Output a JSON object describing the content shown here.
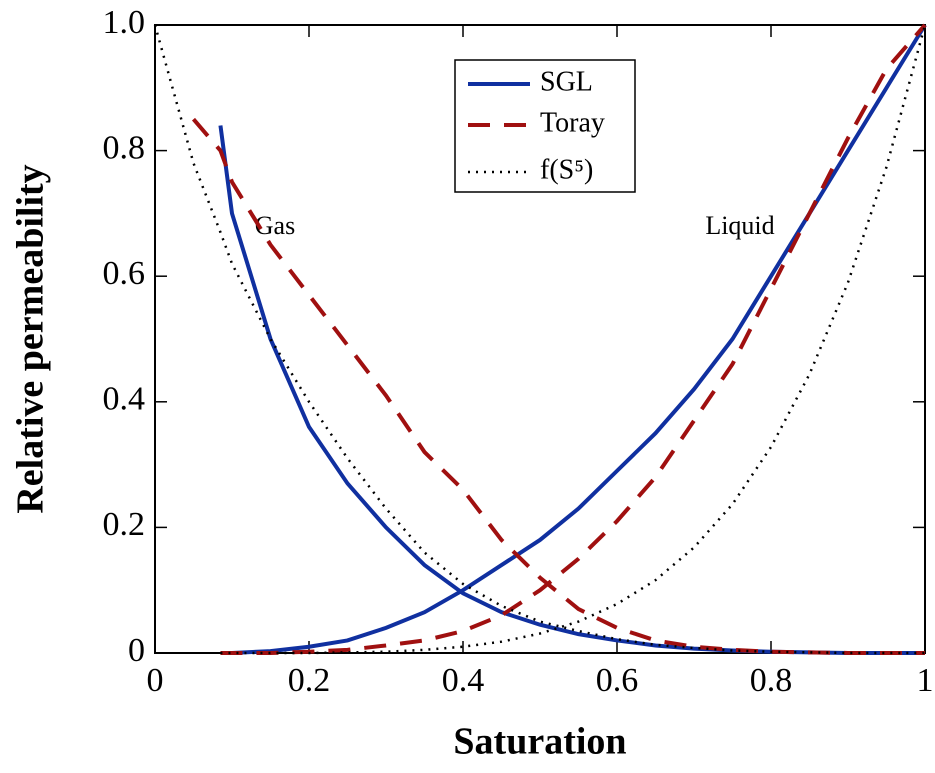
{
  "chart_data": {
    "type": "line",
    "xlabel": "Saturation",
    "ylabel": "Relative permeability",
    "annotations": [
      "Gas",
      "Liquid"
    ],
    "x": [
      0,
      0.05,
      0.085,
      0.1,
      0.15,
      0.2,
      0.25,
      0.3,
      0.35,
      0.4,
      0.45,
      0.5,
      0.55,
      0.6,
      0.65,
      0.7,
      0.75,
      0.8,
      0.85,
      0.9,
      0.95,
      1
    ],
    "xlim": [
      0,
      1
    ],
    "ylim": [
      0,
      1
    ],
    "xticks": [
      0,
      0.2,
      0.4,
      0.6,
      0.8,
      1
    ],
    "yticks": [
      0,
      0.2,
      0.4,
      0.6,
      0.8,
      {
        "value": 1,
        "label": "1.0"
      }
    ],
    "legend": "upper center",
    "series": [
      {
        "name": "SGL",
        "color": "#1030a0",
        "style": "solid",
        "gas": [
          null,
          null,
          0.84,
          0.7,
          0.5,
          0.36,
          0.27,
          0.2,
          0.14,
          0.095,
          0.065,
          0.045,
          0.03,
          0.02,
          0.012,
          0.007,
          0.004,
          0.002,
          0.001,
          0,
          0,
          0
        ],
        "liquid": [
          null,
          null,
          null,
          0,
          0.003,
          0.01,
          0.02,
          0.04,
          0.065,
          0.1,
          0.14,
          0.18,
          0.23,
          0.29,
          0.35,
          0.42,
          0.5,
          0.6,
          0.7,
          0.8,
          0.9,
          1
        ]
      },
      {
        "name": "Toray",
        "color": "#a01010",
        "style": "dashed",
        "gas": [
          null,
          0.85,
          0.8,
          0.75,
          0.65,
          0.57,
          0.49,
          0.41,
          0.32,
          0.26,
          0.18,
          0.12,
          0.07,
          0.04,
          0.02,
          0.01,
          0.005,
          0.002,
          0.001,
          0,
          0,
          0
        ],
        "liquid": [
          null,
          null,
          0,
          0,
          0,
          0.002,
          0.005,
          0.012,
          0.02,
          0.035,
          0.06,
          0.1,
          0.15,
          0.21,
          0.28,
          0.37,
          0.46,
          0.58,
          0.7,
          0.82,
          0.93,
          1
        ]
      },
      {
        "name": "f(S⁵)",
        "color": "#000000",
        "style": "dotted",
        "gas": [
          1,
          0.78,
          0.67,
          0.62,
          0.5,
          0.4,
          0.31,
          0.23,
          0.16,
          0.11,
          0.075,
          0.05,
          0.035,
          0.022,
          0.013,
          0.008,
          0.004,
          0.002,
          0.001,
          0,
          0,
          0
        ],
        "liquid": [
          null,
          null,
          0,
          0,
          0,
          0,
          0.001,
          0.002,
          0.005,
          0.01,
          0.018,
          0.031,
          0.05,
          0.078,
          0.116,
          0.168,
          0.237,
          0.328,
          0.444,
          0.59,
          0.774,
          1
        ]
      }
    ]
  }
}
